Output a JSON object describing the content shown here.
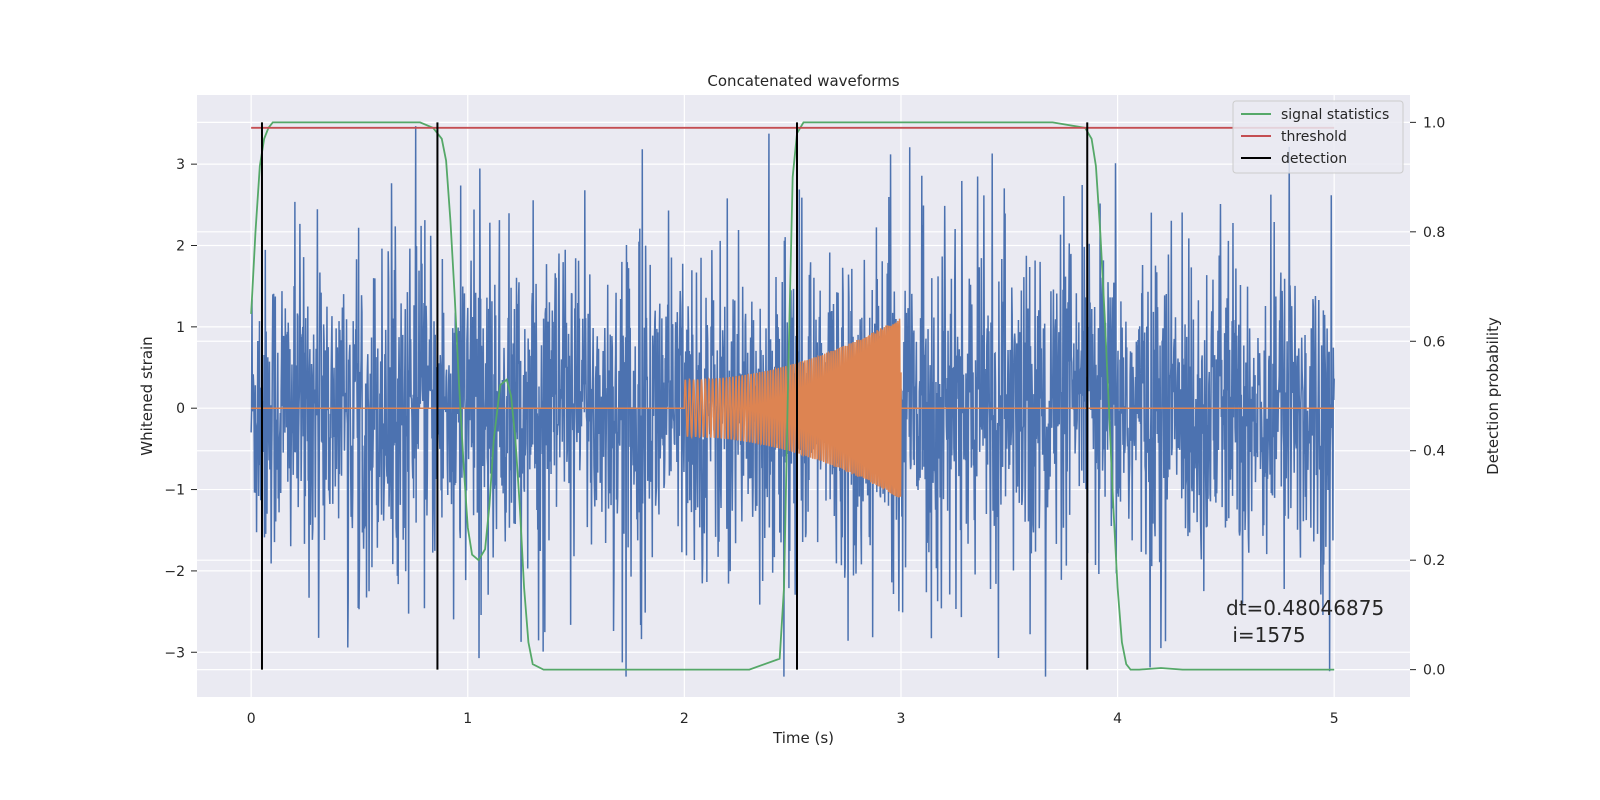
{
  "chart_data": {
    "type": "line",
    "title": "Concatenated waveforms",
    "xlabel": "Time (s)",
    "ylabel_left": "Whitened strain",
    "ylabel_right": "Detection probability",
    "xlim": [
      -0.25,
      5.35
    ],
    "ylim_left": [
      -3.55,
      3.85
    ],
    "ylim_right": [
      -0.05,
      1.05
    ],
    "x_ticks": [
      0,
      1,
      2,
      3,
      4,
      5
    ],
    "x_tick_labels": [
      "0",
      "1",
      "2",
      "3",
      "4",
      "5"
    ],
    "y_left_ticks": [
      3,
      2,
      1,
      0,
      -1,
      -2,
      -3
    ],
    "y_left_tick_labels": [
      "3",
      "2",
      "1",
      "0",
      "−1",
      "−2",
      "−3"
    ],
    "y_right_ticks": [
      1.0,
      0.8,
      0.6,
      0.4,
      0.2,
      0.0
    ],
    "y_right_tick_labels": [
      "1.0",
      "0.8",
      "0.6",
      "0.4",
      "0.2",
      "0.0"
    ],
    "grid": true,
    "legend_placement": "top-right",
    "background": "#eaeaf2",
    "series": [
      {
        "name": "",
        "axis": "left",
        "kind": "noise",
        "color": "#4c72b0",
        "x_range": [
          0,
          5
        ],
        "typical_amplitude": 1.2,
        "peak_amplitude": 3.5
      },
      {
        "name": "",
        "axis": "left",
        "kind": "chirp",
        "color": "#dd8452",
        "x_range": [
          0,
          5
        ],
        "chirp_start": 2.0,
        "chirp_end": 3.0,
        "amplitude_start": 0.35,
        "amplitude_end": 1.12
      },
      {
        "name": "signal statistics",
        "axis": "right",
        "color": "#55a868",
        "x": [
          0.0,
          0.02,
          0.04,
          0.06,
          0.08,
          0.1,
          0.2,
          0.5,
          0.78,
          0.84,
          0.88,
          0.9,
          0.92,
          0.94,
          0.96,
          0.98,
          1.0,
          1.02,
          1.05,
          1.08,
          1.1,
          1.12,
          1.15,
          1.18,
          1.2,
          1.22,
          1.24,
          1.26,
          1.28,
          1.3,
          1.35,
          1.5,
          2.0,
          2.3,
          2.44,
          2.46,
          2.48,
          2.5,
          2.52,
          2.55,
          2.6,
          3.0,
          3.7,
          3.85,
          3.88,
          3.9,
          3.92,
          3.94,
          3.96,
          3.98,
          4.0,
          4.02,
          4.04,
          4.06,
          4.1,
          4.2,
          4.3,
          5.0
        ],
        "y": [
          0.65,
          0.8,
          0.92,
          0.97,
          0.99,
          1.0,
          1.0,
          1.0,
          1.0,
          0.99,
          0.97,
          0.93,
          0.82,
          0.68,
          0.52,
          0.38,
          0.26,
          0.21,
          0.2,
          0.22,
          0.3,
          0.42,
          0.52,
          0.53,
          0.5,
          0.42,
          0.3,
          0.15,
          0.05,
          0.01,
          0.0,
          0.0,
          0.0,
          0.0,
          0.02,
          0.15,
          0.55,
          0.9,
          0.98,
          1.0,
          1.0,
          1.0,
          1.0,
          0.99,
          0.97,
          0.92,
          0.8,
          0.65,
          0.48,
          0.3,
          0.15,
          0.05,
          0.01,
          0.0,
          0.0,
          0.003,
          0.0,
          0.0
        ]
      },
      {
        "name": "threshold",
        "axis": "right",
        "color": "#c44e52",
        "x": [
          0,
          5
        ],
        "y": [
          0.99,
          0.99
        ]
      },
      {
        "name": "detection",
        "axis": "right",
        "color": "#000000",
        "kind": "vlines",
        "x": [
          0.05,
          0.86,
          2.52,
          3.86
        ],
        "y_range": [
          0.0,
          1.0
        ]
      }
    ],
    "annotations": [
      "dt=0.48046875",
      " i=1575"
    ]
  }
}
